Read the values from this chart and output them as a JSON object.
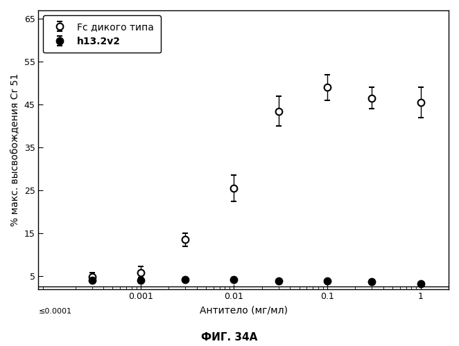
{
  "title": "",
  "xlabel": "Антитело (мг/мл)",
  "ylabel": "% макс. высвобождения Cr 51",
  "caption": "ФИГ. 34А",
  "xlim": [
    8e-05,
    2.0
  ],
  "ylim": [
    2,
    67
  ],
  "yticks": [
    5,
    15,
    25,
    35,
    45,
    55,
    65
  ],
  "ytick_labels": [
    "5",
    "15",
    "25",
    "35",
    "45",
    "55",
    "65"
  ],
  "xticks": [
    0.001,
    0.01,
    0.1,
    1.0
  ],
  "xtick_labels": [
    "0.001",
    "0.01",
    "0.1",
    "1"
  ],
  "series1_label": "Fc дикого типа",
  "series2_label": "h13.2v2",
  "series1_x": [
    0.0003,
    0.001,
    0.003,
    0.01,
    0.03,
    0.1,
    0.3,
    1.0
  ],
  "series1_y": [
    4.8,
    5.8,
    13.5,
    25.5,
    43.5,
    49.0,
    46.5,
    45.5
  ],
  "series1_yerr": [
    1.0,
    1.5,
    1.5,
    3.0,
    3.5,
    3.0,
    2.5,
    3.5
  ],
  "series2_x": [
    0.0003,
    0.001,
    0.003,
    0.01,
    0.03,
    0.1,
    0.3,
    1.0
  ],
  "series2_y": [
    4.0,
    4.0,
    4.2,
    4.2,
    3.8,
    3.8,
    3.7,
    3.2
  ],
  "series2_yerr": [
    0.5,
    0.6,
    0.5,
    0.5,
    0.4,
    0.4,
    0.4,
    0.4
  ],
  "background_color": "#ffffff",
  "line_color": "#000000",
  "marker_size": 7,
  "linewidth": 1.5,
  "capsize": 3,
  "legend_fontsize": 10,
  "axis_fontsize": 10,
  "tick_fontsize": 9,
  "caption_fontsize": 11,
  "baseline_y": 2.5
}
